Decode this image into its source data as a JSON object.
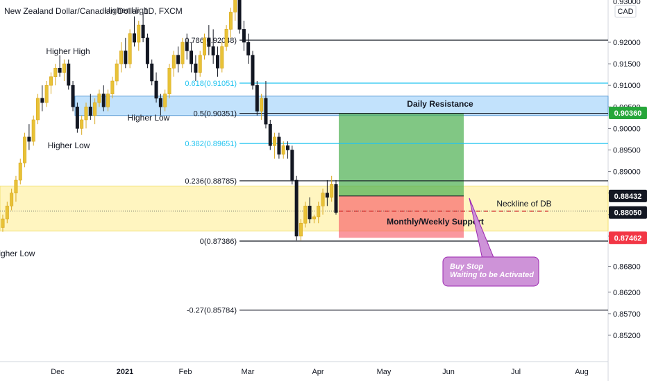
{
  "title": "New Zealand Dollar/Canadian Dollar, 1D, FXCM",
  "currency": "CAD",
  "chart_data": {
    "type": "candlestick",
    "symbol": "NZDCAD",
    "timeframe": "1D",
    "broker": "FXCM",
    "y_axis": {
      "ticks": [
        "0.92000",
        "0.91500",
        "0.91000",
        "0.90500",
        "0.90000",
        "0.89500",
        "0.89000",
        "0.88500",
        "0.88000",
        "0.87500",
        "0.86800",
        "0.86200",
        "0.85700",
        "0.85200"
      ],
      "top_tick_partial": "0.93000",
      "ylim": [
        0.85,
        0.93
      ]
    },
    "x_axis": {
      "ticks": [
        "Dec",
        "2021",
        "Feb",
        "Mar",
        "Apr",
        "May",
        "Jun",
        "Jul",
        "Aug"
      ]
    },
    "price_tags": [
      {
        "value": "0.90360",
        "color": "#26a63a"
      },
      {
        "value": "0.88432",
        "color": "#131722"
      },
      {
        "value": "0.88050",
        "color": "#131722"
      },
      {
        "value": "0.87462",
        "color": "#f23645"
      }
    ],
    "fibonacci": [
      {
        "label": "0.786(0.92048)",
        "price": 0.92048,
        "color": "#131722"
      },
      {
        "label": "0.618(0.91051)",
        "price": 0.91051,
        "color": "#22c4f0"
      },
      {
        "label": "0.5(0.90351)",
        "price": 0.90351,
        "color": "#131722"
      },
      {
        "label": "0.382(0.89651)",
        "price": 0.89651,
        "color": "#22c4f0"
      },
      {
        "label": "0.236(0.88785)",
        "price": 0.88785,
        "color": "#131722"
      },
      {
        "label": "0(0.87386)",
        "price": 0.87386,
        "color": "#131722"
      },
      {
        "label": "-0.27(0.85784)",
        "price": 0.85784,
        "color": "#131722"
      }
    ],
    "zones": [
      {
        "label": "Daily Resistance",
        "from": 0.903,
        "to": 0.9075,
        "color": "#90caf9"
      },
      {
        "label": "Monthly/Weekly Support",
        "from": 0.8762,
        "to": 0.8866,
        "color": "#fff3b0"
      }
    ],
    "position": {
      "entry": 0.88432,
      "target": 0.9036,
      "stop": 0.87462,
      "profit_color": "#4caf50",
      "loss_color": "#f7525f"
    },
    "neckline": {
      "label": "Neckline of DB",
      "price": 0.8808
    },
    "annotations": [
      "Higher High",
      "Higher Low",
      "Higher Low",
      "Higher Low",
      "Higher High"
    ],
    "callout": [
      "Buy Stop",
      "Waiting to be Activated"
    ],
    "candles": [
      [
        0.877,
        0.88,
        0.876,
        0.879
      ],
      [
        0.879,
        0.883,
        0.878,
        0.882
      ],
      [
        0.882,
        0.886,
        0.881,
        0.885
      ],
      [
        0.885,
        0.889,
        0.883,
        0.888
      ],
      [
        0.888,
        0.893,
        0.887,
        0.892
      ],
      [
        0.892,
        0.899,
        0.891,
        0.898
      ],
      [
        0.898,
        0.901,
        0.895,
        0.897
      ],
      [
        0.897,
        0.903,
        0.896,
        0.902
      ],
      [
        0.902,
        0.908,
        0.901,
        0.907
      ],
      [
        0.907,
        0.91,
        0.904,
        0.906
      ],
      [
        0.906,
        0.911,
        0.905,
        0.91
      ],
      [
        0.91,
        0.913,
        0.908,
        0.912
      ],
      [
        0.912,
        0.915,
        0.91,
        0.914
      ],
      [
        0.914,
        0.917,
        0.912,
        0.913
      ],
      [
        0.913,
        0.916,
        0.911,
        0.915
      ],
      [
        0.915,
        0.916,
        0.909,
        0.91
      ],
      [
        0.91,
        0.911,
        0.904,
        0.905
      ],
      [
        0.905,
        0.906,
        0.899,
        0.9
      ],
      [
        0.9,
        0.903,
        0.8985,
        0.902
      ],
      [
        0.902,
        0.906,
        0.9,
        0.905
      ],
      [
        0.905,
        0.908,
        0.902,
        0.903
      ],
      [
        0.903,
        0.907,
        0.901,
        0.906
      ],
      [
        0.906,
        0.909,
        0.905,
        0.908
      ],
      [
        0.908,
        0.91,
        0.904,
        0.905
      ],
      [
        0.905,
        0.909,
        0.904,
        0.908
      ],
      [
        0.908,
        0.912,
        0.907,
        0.911
      ],
      [
        0.911,
        0.916,
        0.91,
        0.915
      ],
      [
        0.915,
        0.92,
        0.913,
        0.918
      ],
      [
        0.918,
        0.921,
        0.914,
        0.915
      ],
      [
        0.915,
        0.923,
        0.914,
        0.922
      ],
      [
        0.922,
        0.926,
        0.919,
        0.92
      ],
      [
        0.92,
        0.925,
        0.918,
        0.924
      ],
      [
        0.924,
        0.927,
        0.92,
        0.921
      ],
      [
        0.921,
        0.922,
        0.914,
        0.915
      ],
      [
        0.915,
        0.916,
        0.91,
        0.911
      ],
      [
        0.911,
        0.913,
        0.906,
        0.907
      ],
      [
        0.907,
        0.908,
        0.903,
        0.905
      ],
      [
        0.905,
        0.909,
        0.904,
        0.908
      ],
      [
        0.908,
        0.915,
        0.907,
        0.914
      ],
      [
        0.914,
        0.918,
        0.912,
        0.917
      ],
      [
        0.917,
        0.919,
        0.913,
        0.915
      ],
      [
        0.915,
        0.921,
        0.914,
        0.92
      ],
      [
        0.92,
        0.922,
        0.916,
        0.918
      ],
      [
        0.918,
        0.92,
        0.913,
        0.915
      ],
      [
        0.915,
        0.917,
        0.911,
        0.913
      ],
      [
        0.913,
        0.918,
        0.912,
        0.917
      ],
      [
        0.917,
        0.922,
        0.916,
        0.921
      ],
      [
        0.921,
        0.924,
        0.917,
        0.919
      ],
      [
        0.919,
        0.923,
        0.915,
        0.917
      ],
      [
        0.917,
        0.919,
        0.912,
        0.914
      ],
      [
        0.914,
        0.92,
        0.913,
        0.919
      ],
      [
        0.919,
        0.924,
        0.918,
        0.923
      ],
      [
        0.923,
        0.928,
        0.921,
        0.927
      ],
      [
        0.927,
        0.932,
        0.925,
        0.93
      ],
      [
        0.93,
        0.931,
        0.922,
        0.923
      ],
      [
        0.923,
        0.925,
        0.918,
        0.92
      ],
      [
        0.92,
        0.922,
        0.915,
        0.917
      ],
      [
        0.917,
        0.918,
        0.909,
        0.91
      ],
      [
        0.91,
        0.911,
        0.903,
        0.904
      ],
      [
        0.904,
        0.908,
        0.902,
        0.907
      ],
      [
        0.907,
        0.911,
        0.9,
        0.901
      ],
      [
        0.901,
        0.902,
        0.895,
        0.896
      ],
      [
        0.896,
        0.899,
        0.893,
        0.898
      ],
      [
        0.898,
        0.899,
        0.893,
        0.894
      ],
      [
        0.894,
        0.897,
        0.893,
        0.896
      ],
      [
        0.896,
        0.897,
        0.893,
        0.895
      ],
      [
        0.895,
        0.896,
        0.887,
        0.888
      ],
      [
        0.888,
        0.889,
        0.874,
        0.875
      ],
      [
        0.875,
        0.879,
        0.874,
        0.878
      ],
      [
        0.878,
        0.883,
        0.877,
        0.882
      ],
      [
        0.882,
        0.884,
        0.878,
        0.879
      ],
      [
        0.879,
        0.88,
        0.878,
        0.8795
      ],
      [
        0.8795,
        0.883,
        0.878,
        0.882
      ],
      [
        0.882,
        0.886,
        0.88,
        0.885
      ],
      [
        0.885,
        0.888,
        0.882,
        0.884
      ],
      [
        0.884,
        0.889,
        0.883,
        0.887
      ],
      [
        0.887,
        0.888,
        0.88,
        0.8805
      ]
    ]
  }
}
